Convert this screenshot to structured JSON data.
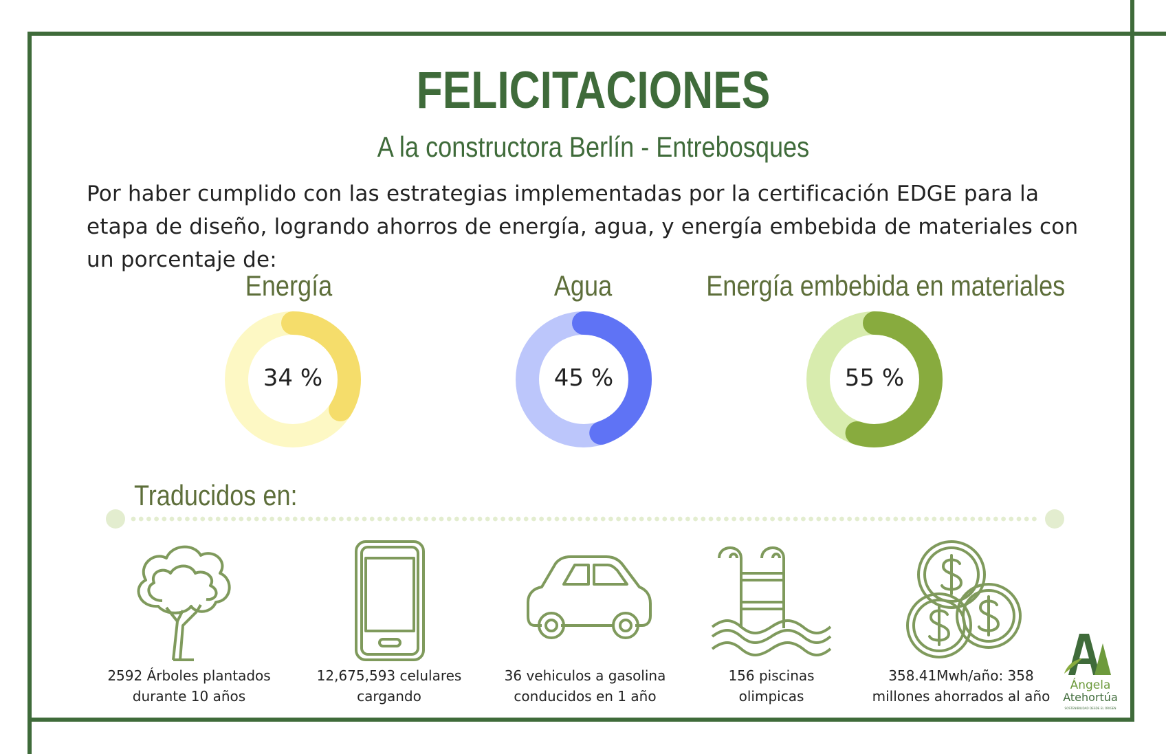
{
  "title": "FELICITACIONES",
  "subtitle": "A la constructora Berlín - Entrebosques",
  "intro": "Por haber cumplido con las estrategias implementadas por la certificación EDGE para la etapa de diseño, logrando ahorros de energía, agua, y energía embebida de materiales con un porcentaje de:",
  "metrics": [
    {
      "label": "Energía",
      "value_text": "34 %",
      "value": 34,
      "track_color": "#fdf8c4",
      "fill_color": "#f5dd6b"
    },
    {
      "label": "Agua",
      "value_text": "45 %",
      "value": 45,
      "track_color": "#bcc6fb",
      "fill_color": "#5f73f5"
    },
    {
      "label": "Energía embebida en materiales",
      "value_text": "55 %",
      "value": 55,
      "track_color": "#d8ecae",
      "fill_color": "#88ab3e"
    }
  ],
  "translated_heading": "Traducidos en:",
  "equivalences": [
    {
      "icon": "tree-icon",
      "line1": "2592 Árboles plantados",
      "line2": "durante 10 años"
    },
    {
      "icon": "phone-icon",
      "line1": "12,675,593 celulares",
      "line2": "cargando"
    },
    {
      "icon": "car-icon",
      "line1": "36 vehiculos a gasolina",
      "line2": "conducidos en 1 año"
    },
    {
      "icon": "pool-icon",
      "line1": "156 piscinas",
      "line2": "olimpicas"
    },
    {
      "icon": "coins-icon",
      "line1": "358.41Mwh/año: 358",
      "line2": "millones ahorrados al año"
    }
  ],
  "logo": {
    "line1": "Ángela",
    "line2": "Atehortúa",
    "tagline": "SOSTENIBILIDAD DESDE EL ORIGEN"
  },
  "colors": {
    "frame": "#3f6b3a",
    "icon": "#7f9a5c",
    "dots": "#e3edcf"
  }
}
